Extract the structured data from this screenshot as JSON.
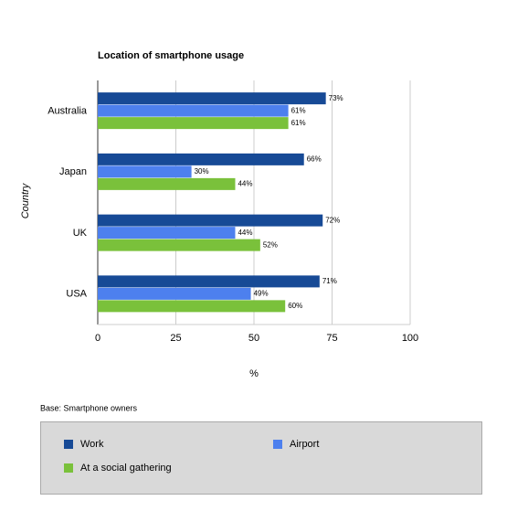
{
  "chart_data": {
    "type": "bar",
    "orientation": "horizontal",
    "title": "Location of smartphone usage",
    "y_label": "Country",
    "x_label": "%",
    "note": "Base: Smartphone owners",
    "categories": [
      "Australia",
      "Japan",
      "UK",
      "USA"
    ],
    "series": [
      {
        "name": "Work",
        "color": "#174a96",
        "values": [
          73,
          66,
          72,
          71
        ],
        "value_labels": [
          "73%",
          "66%",
          "72%",
          "71%"
        ]
      },
      {
        "name": "Airport",
        "color": "#4d80ee",
        "values": [
          61,
          30,
          44,
          49
        ],
        "value_labels": [
          "61%",
          "30%",
          "44%",
          "49%"
        ]
      },
      {
        "name": "At a social gathering",
        "color": "#7ac13b",
        "values": [
          61,
          44,
          52,
          60
        ],
        "value_labels": [
          "61%",
          "44%",
          "52%",
          "60%"
        ]
      }
    ],
    "xlim": [
      0,
      100
    ],
    "xticks": [
      0,
      25,
      50,
      75,
      100
    ],
    "grid": true,
    "legend": "bottom"
  }
}
